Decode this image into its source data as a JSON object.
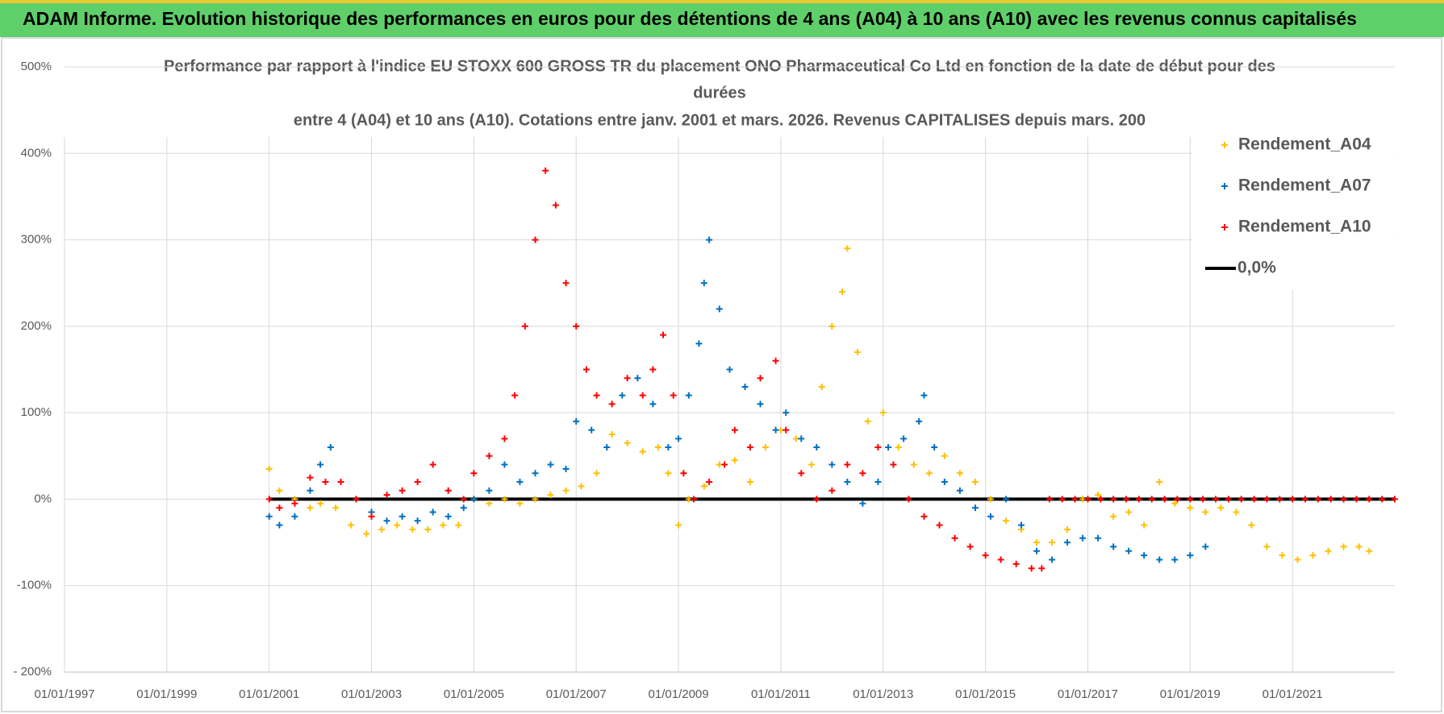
{
  "header": {
    "title": "ADAM Informe. Evolution historique des performances en euros pour des détentions de 4 ans (A04) à 10 ans (A10) avec les revenus connus capitalisés"
  },
  "chart_data": {
    "type": "scatter",
    "title": [
      "Performance par rapport à l'indice EU STOXX 600 GROSS TR  du placement ONO Pharmaceutical Co Ltd en fonction de la date de début pour des",
      "durées",
      "entre 4 (A04) et 10 ans (A10). Cotations entre janv. 2001 et mars. 2026. Revenus CAPITALISES depuis mars. 200"
    ],
    "xlim": [
      1997,
      2023
    ],
    "xticks": [
      {
        "value": 1997,
        "label": "01/01/1997"
      },
      {
        "value": 1999,
        "label": "01/01/1999"
      },
      {
        "value": 2001,
        "label": "01/01/2001"
      },
      {
        "value": 2003,
        "label": "01/01/2003"
      },
      {
        "value": 2005,
        "label": "01/01/2005"
      },
      {
        "value": 2007,
        "label": "01/01/2007"
      },
      {
        "value": 2009,
        "label": "01/01/2009"
      },
      {
        "value": 2011,
        "label": "01/01/2011"
      },
      {
        "value": 2013,
        "label": "01/01/2013"
      },
      {
        "value": 2015,
        "label": "01/01/2015"
      },
      {
        "value": 2017,
        "label": "01/01/2017"
      },
      {
        "value": 2019,
        "label": "01/01/2019"
      },
      {
        "value": 2021,
        "label": "01/01/2021"
      }
    ],
    "ylim": [
      -200,
      500
    ],
    "yticks": [
      {
        "value": -200,
        "label": "- 200%"
      },
      {
        "value": -100,
        "label": "-100%"
      },
      {
        "value": 0,
        "label": "0%"
      },
      {
        "value": 100,
        "label": "100%"
      },
      {
        "value": 200,
        "label": "200%"
      },
      {
        "value": 300,
        "label": "300%"
      },
      {
        "value": 400,
        "label": "400%"
      },
      {
        "value": 500,
        "label": "500%"
      }
    ],
    "grid": true,
    "legend": "top-right",
    "series": [
      {
        "name": "Rendement_A04",
        "color": "#ffc000",
        "mode": "markers",
        "x": [
          2001.0,
          2001.2,
          2001.5,
          2001.8,
          2002.0,
          2002.3,
          2002.6,
          2002.9,
          2003.2,
          2003.5,
          2003.8,
          2004.1,
          2004.4,
          2004.7,
          2005.0,
          2005.3,
          2005.6,
          2005.9,
          2006.2,
          2006.5,
          2006.8,
          2007.1,
          2007.4,
          2007.7,
          2008.0,
          2008.3,
          2008.6,
          2008.8,
          2009.0,
          2009.2,
          2009.5,
          2009.8,
          2010.1,
          2010.4,
          2010.7,
          2011.0,
          2011.3,
          2011.6,
          2011.8,
          2012.0,
          2012.2,
          2012.3,
          2012.5,
          2012.7,
          2013.0,
          2013.3,
          2013.6,
          2013.9,
          2014.2,
          2014.5,
          2014.8,
          2015.1,
          2015.4,
          2015.7,
          2016.0,
          2016.3,
          2016.6,
          2016.9,
          2017.2,
          2017.5,
          2017.8,
          2018.1,
          2018.4,
          2018.7,
          2019.0,
          2019.3,
          2019.6,
          2019.9,
          2020.2,
          2020.5,
          2020.8,
          2021.1,
          2021.4,
          2021.7,
          2022.0,
          2022.3,
          2022.5
        ],
        "values": [
          35,
          10,
          0,
          -10,
          -5,
          -10,
          -30,
          -40,
          -35,
          -30,
          -35,
          -35,
          -30,
          -30,
          0,
          -5,
          0,
          -5,
          0,
          5,
          10,
          15,
          30,
          75,
          65,
          55,
          60,
          30,
          -30,
          0,
          15,
          40,
          45,
          20,
          60,
          80,
          70,
          40,
          130,
          200,
          240,
          290,
          170,
          90,
          100,
          60,
          40,
          30,
          50,
          30,
          20,
          0,
          -25,
          -35,
          -50,
          -50,
          -35,
          0,
          5,
          -20,
          -15,
          -30,
          20,
          -5,
          -10,
          -15,
          -10,
          -15,
          -30,
          -55,
          -65,
          -70,
          -65,
          -60,
          -55,
          -55,
          -60
        ]
      },
      {
        "name": "Rendement_A07",
        "color": "#0070c0",
        "mode": "markers",
        "x": [
          2001.0,
          2001.2,
          2001.5,
          2001.8,
          2002.0,
          2002.2,
          2002.4,
          2002.7,
          2003.0,
          2003.3,
          2003.6,
          2003.9,
          2004.2,
          2004.5,
          2004.8,
          2005.0,
          2005.3,
          2005.6,
          2005.9,
          2006.2,
          2006.5,
          2006.8,
          2007.0,
          2007.3,
          2007.6,
          2007.9,
          2008.2,
          2008.5,
          2008.8,
          2009.0,
          2009.2,
          2009.4,
          2009.5,
          2009.6,
          2009.8,
          2010.0,
          2010.3,
          2010.6,
          2010.9,
          2011.1,
          2011.4,
          2011.7,
          2012.0,
          2012.3,
          2012.6,
          2012.9,
          2013.1,
          2013.4,
          2013.7,
          2013.8,
          2014.0,
          2014.2,
          2014.5,
          2014.8,
          2015.1,
          2015.4,
          2015.7,
          2016.0,
          2016.3,
          2016.6,
          2016.9,
          2017.2,
          2017.5,
          2017.8,
          2018.1,
          2018.4,
          2018.7,
          2019.0,
          2019.3
        ],
        "values": [
          -20,
          -30,
          -20,
          10,
          40,
          60,
          20,
          0,
          -15,
          -25,
          -20,
          -25,
          -15,
          -20,
          -10,
          0,
          10,
          40,
          20,
          30,
          40,
          35,
          90,
          80,
          60,
          120,
          140,
          110,
          60,
          70,
          120,
          180,
          250,
          300,
          220,
          150,
          130,
          110,
          80,
          100,
          70,
          60,
          40,
          20,
          -5,
          20,
          60,
          70,
          90,
          120,
          60,
          20,
          10,
          -10,
          -20,
          0,
          -30,
          -60,
          -70,
          -50,
          -45,
          -45,
          -55,
          -60,
          -65,
          -70,
          -70,
          -65,
          -55
        ]
      },
      {
        "name": "Rendement_A10",
        "color": "#ff0000",
        "mode": "markers",
        "x": [
          2001.0,
          2001.2,
          2001.5,
          2001.8,
          2002.1,
          2002.4,
          2002.7,
          2003.0,
          2003.3,
          2003.6,
          2003.9,
          2004.2,
          2004.5,
          2004.8,
          2005.0,
          2005.3,
          2005.6,
          2005.8,
          2006.0,
          2006.2,
          2006.4,
          2006.6,
          2006.8,
          2007.0,
          2007.2,
          2007.4,
          2007.7,
          2008.0,
          2008.3,
          2008.5,
          2008.7,
          2008.9,
          2009.1,
          2009.3,
          2009.6,
          2009.9,
          2010.1,
          2010.4,
          2010.6,
          2010.9,
          2011.1,
          2011.4,
          2011.7,
          2012.0,
          2012.3,
          2012.6,
          2012.9,
          2013.2,
          2013.5,
          2013.8,
          2014.1,
          2014.4,
          2014.7,
          2015.0,
          2015.3,
          2015.6,
          2015.9,
          2016.1,
          2016.25,
          2016.5,
          2016.75,
          2017.0,
          2017.25,
          2017.5,
          2017.75,
          2018.0,
          2018.25,
          2018.5,
          2018.75,
          2019.0,
          2019.25,
          2019.5,
          2019.75,
          2020.0,
          2020.25,
          2020.5,
          2020.75,
          2021.0,
          2021.25,
          2021.5,
          2021.75,
          2022.0,
          2022.25,
          2022.5,
          2022.75,
          2023.0
        ],
        "values": [
          0,
          -10,
          -5,
          25,
          20,
          20,
          0,
          -20,
          5,
          10,
          20,
          40,
          10,
          0,
          30,
          50,
          70,
          120,
          200,
          300,
          380,
          340,
          250,
          200,
          150,
          120,
          110,
          140,
          120,
          150,
          190,
          120,
          30,
          0,
          20,
          40,
          80,
          60,
          140,
          160,
          80,
          30,
          0,
          10,
          40,
          30,
          60,
          40,
          0,
          -20,
          -30,
          -45,
          -55,
          -65,
          -70,
          -75,
          -80,
          -80,
          0,
          0,
          0,
          0,
          0,
          0,
          0,
          0,
          0,
          0,
          0,
          0,
          0,
          0,
          0,
          0,
          0,
          0,
          0,
          0,
          0,
          0,
          0,
          0,
          0,
          0,
          0,
          0
        ]
      },
      {
        "name": "0,0%",
        "color": "#000000",
        "mode": "line",
        "x": [
          2001,
          2023
        ],
        "values": [
          0,
          0
        ]
      }
    ]
  }
}
